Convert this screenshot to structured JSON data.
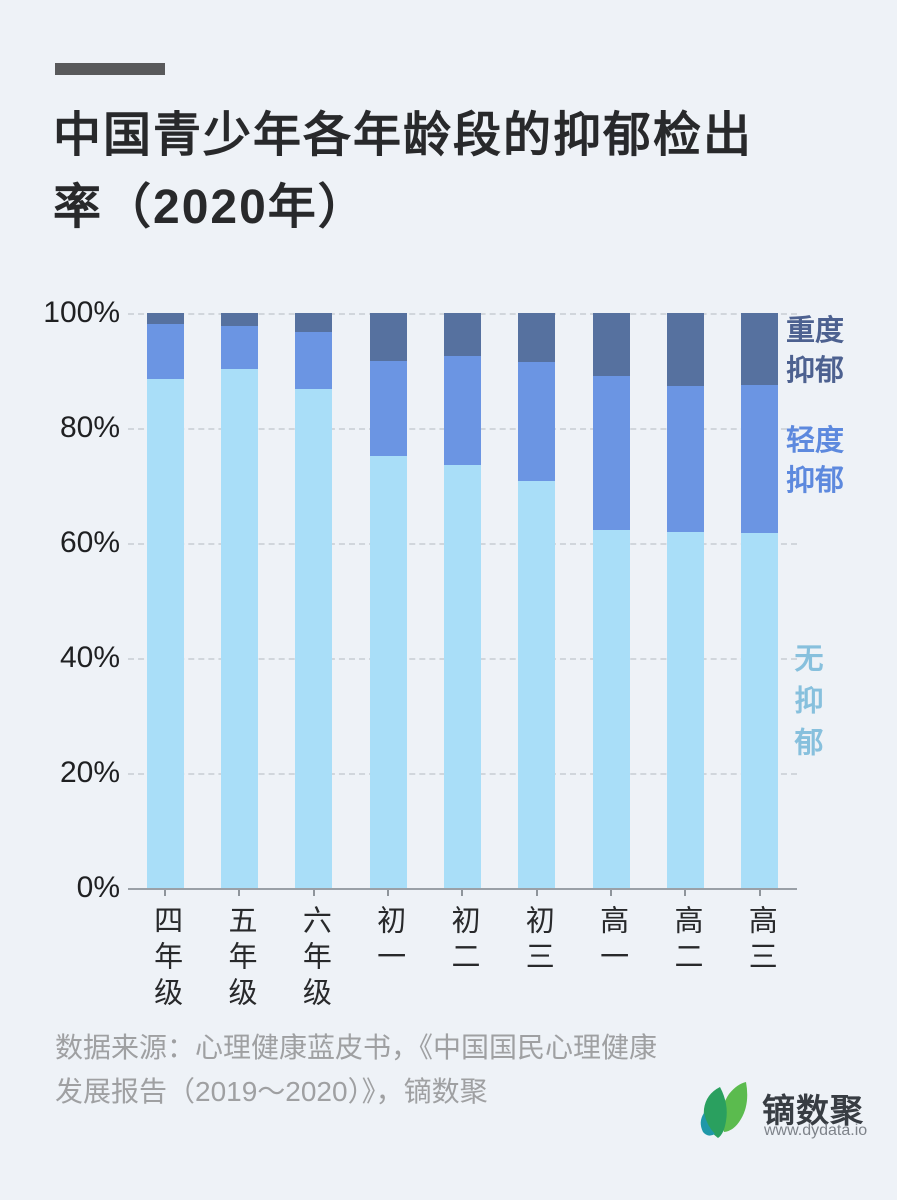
{
  "header": {
    "title_line1": "中国青少年各年龄段的抑郁检出",
    "title_line2": "率（2020年）"
  },
  "chart_data": {
    "type": "bar",
    "stacked": true,
    "title": "中国青少年各年龄段的抑郁检出率（2020年）",
    "categories": [
      "四年级",
      "五年级",
      "六年级",
      "初一",
      "初二",
      "初三",
      "高一",
      "高二",
      "高三"
    ],
    "series": [
      {
        "name": "无抑郁",
        "color": "#a9def8",
        "values": [
          88.6,
          90.3,
          86.8,
          75.2,
          73.6,
          70.8,
          62.2,
          62.0,
          61.8
        ]
      },
      {
        "name": "轻度抑郁",
        "color": "#6b95e3",
        "values": [
          9.5,
          7.4,
          9.9,
          16.5,
          18.9,
          20.6,
          26.9,
          25.3,
          25.6
        ]
      },
      {
        "name": "重度抑郁",
        "color": "#56719f",
        "values": [
          1.9,
          2.3,
          3.3,
          8.3,
          7.5,
          8.6,
          10.9,
          12.7,
          12.6
        ]
      }
    ],
    "ylabel": "",
    "xlabel": "",
    "ylim": [
      0,
      100
    ],
    "y_ticks": [
      "100%",
      "80%",
      "60%",
      "40%",
      "20%",
      "0%"
    ],
    "grid": "horizontal-dashed",
    "legend_position": "right"
  },
  "legend": {
    "severe_line1": "重度",
    "severe_line2": "抑郁",
    "mild_line1": "轻度",
    "mild_line2": "抑郁",
    "none_label": "无抑郁"
  },
  "source": {
    "line1": "数据来源：心理健康蓝皮书，《中国国民心理健康",
    "line2": "发展报告（2019～2020）》，镝数聚"
  },
  "logo": {
    "brand": "镝数聚",
    "url": "www.dydata.io",
    "leaf_colors": {
      "dark_green": "#2aa05f",
      "light_green": "#5bbb4e",
      "teal": "#1f98a8"
    }
  },
  "colors": {
    "background": "#eef2f7",
    "accent_bar": "#58595b",
    "severe_text": "#4d6190",
    "mild_text": "#5d89de",
    "none_text": "#87c0dd"
  }
}
